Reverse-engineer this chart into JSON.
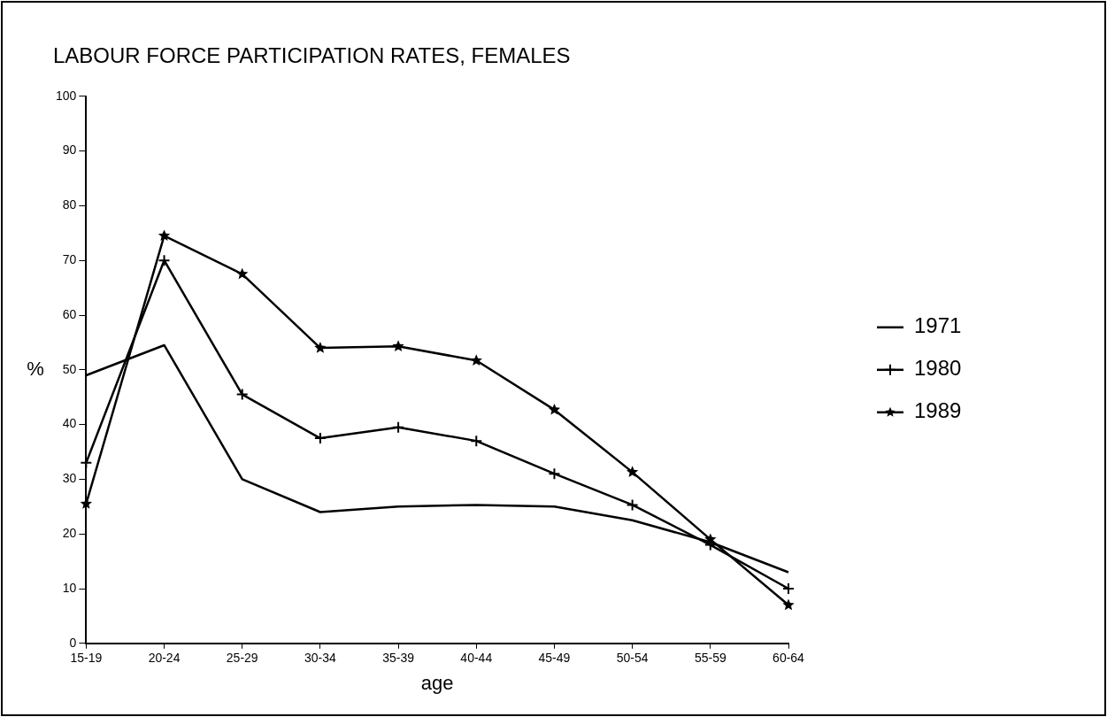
{
  "chart_data": {
    "type": "line",
    "title": "LABOUR FORCE PARTICIPATION RATES, FEMALES",
    "xlabel": "age",
    "ylabel": "%",
    "categories": [
      "15-19",
      "20-24",
      "25-29",
      "30-34",
      "35-39",
      "40-44",
      "45-49",
      "50-54",
      "55-59",
      "60-64"
    ],
    "series": [
      {
        "name": "1971",
        "color": "#000000",
        "marker": "none",
        "values": [
          49,
          54.5,
          30,
          24,
          25,
          25.3,
          25,
          22.5,
          18.5,
          13
        ]
      },
      {
        "name": "1980",
        "color": "#000000",
        "marker": "cross",
        "values": [
          33,
          70,
          45.5,
          37.5,
          39.5,
          37,
          31,
          25.3,
          18,
          10
        ]
      },
      {
        "name": "1989",
        "color": "#000000",
        "marker": "star",
        "values": [
          25.5,
          74.5,
          67.5,
          54,
          54.3,
          51.7,
          42.7,
          31.3,
          19,
          7
        ]
      }
    ],
    "ylim": [
      0,
      100
    ],
    "yticks": [
      0,
      10,
      20,
      30,
      40,
      50,
      60,
      70,
      80,
      90,
      100
    ],
    "grid": false,
    "legend": "right",
    "line_style": "solid"
  }
}
